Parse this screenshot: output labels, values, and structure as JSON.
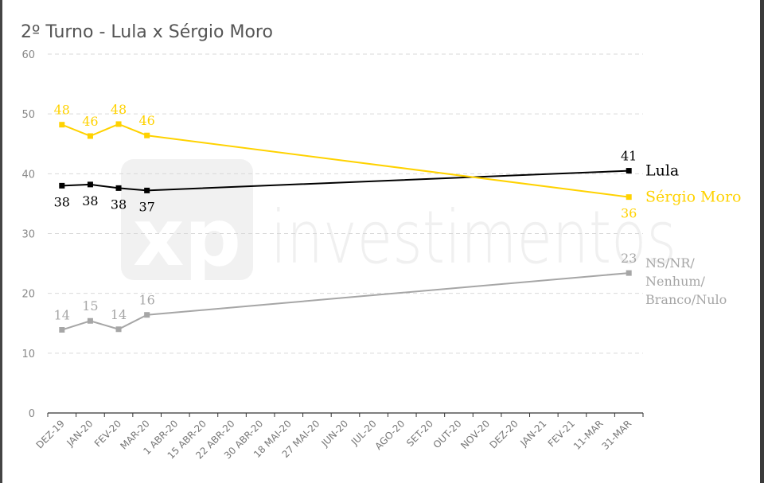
{
  "chart_data": {
    "type": "line",
    "title": "2º Turno - Lula x Sérgio Moro",
    "watermark": "investimentos",
    "watermark_logo": "xp",
    "ylim": [
      0,
      60
    ],
    "y_ticks": [
      0,
      10,
      20,
      30,
      40,
      50,
      60
    ],
    "grid": true,
    "categories": [
      "DEZ-19",
      "JAN-20",
      "FEV-20",
      "MAR-20",
      "1 ABR-20",
      "15 ABR-20",
      "22 ABR-20",
      "30 ABR-20",
      "18 MAI-20",
      "27 MAI-20",
      "JUN-20",
      "JUL-20",
      "AGO-20",
      "SET-20",
      "OUT-20",
      "NOV-20",
      "DEZ-20",
      "JAN-21",
      "FEV-21",
      "11-MAR",
      "31-MAR"
    ],
    "series": [
      {
        "name": "Lula",
        "color": "#000000",
        "name_lines": [
          "Lula"
        ],
        "points": [
          {
            "category": "DEZ-19",
            "value": 38,
            "label": "38",
            "label_pos": "below"
          },
          {
            "category": "JAN-20",
            "value": 38.2,
            "label": "38",
            "label_pos": "below"
          },
          {
            "category": "FEV-20",
            "value": 37.6,
            "label": "38",
            "label_pos": "below"
          },
          {
            "category": "MAR-20",
            "value": 37.2,
            "label": "37",
            "label_pos": "below"
          },
          {
            "category": "31-MAR",
            "value": 40.5,
            "label": "41",
            "label_pos": "above"
          }
        ]
      },
      {
        "name": "Sérgio Moro",
        "color": "#FFD200",
        "name_lines": [
          "Sérgio Moro"
        ],
        "points": [
          {
            "category": "DEZ-19",
            "value": 48.2,
            "label": "48",
            "label_pos": "above"
          },
          {
            "category": "JAN-20",
            "value": 46.3,
            "label": "46",
            "label_pos": "above"
          },
          {
            "category": "FEV-20",
            "value": 48.3,
            "label": "48",
            "label_pos": "above"
          },
          {
            "category": "MAR-20",
            "value": 46.4,
            "label": "46",
            "label_pos": "above"
          },
          {
            "category": "31-MAR",
            "value": 36.1,
            "label": "36",
            "label_pos": "below"
          }
        ]
      },
      {
        "name": "NS/NR/Nenhum/Branco/Nulo",
        "color": "#A6A6A6",
        "name_lines": [
          "NS/NR/",
          "Nenhum/",
          "Branco/Nulo"
        ],
        "points": [
          {
            "category": "DEZ-19",
            "value": 13.9,
            "label": "14",
            "label_pos": "above"
          },
          {
            "category": "JAN-20",
            "value": 15.4,
            "label": "15",
            "label_pos": "above"
          },
          {
            "category": "FEV-20",
            "value": 14,
            "label": "14",
            "label_pos": "above"
          },
          {
            "category": "MAR-20",
            "value": 16.4,
            "label": "16",
            "label_pos": "above"
          },
          {
            "category": "31-MAR",
            "value": 23.4,
            "label": "23",
            "label_pos": "above"
          }
        ]
      }
    ]
  }
}
